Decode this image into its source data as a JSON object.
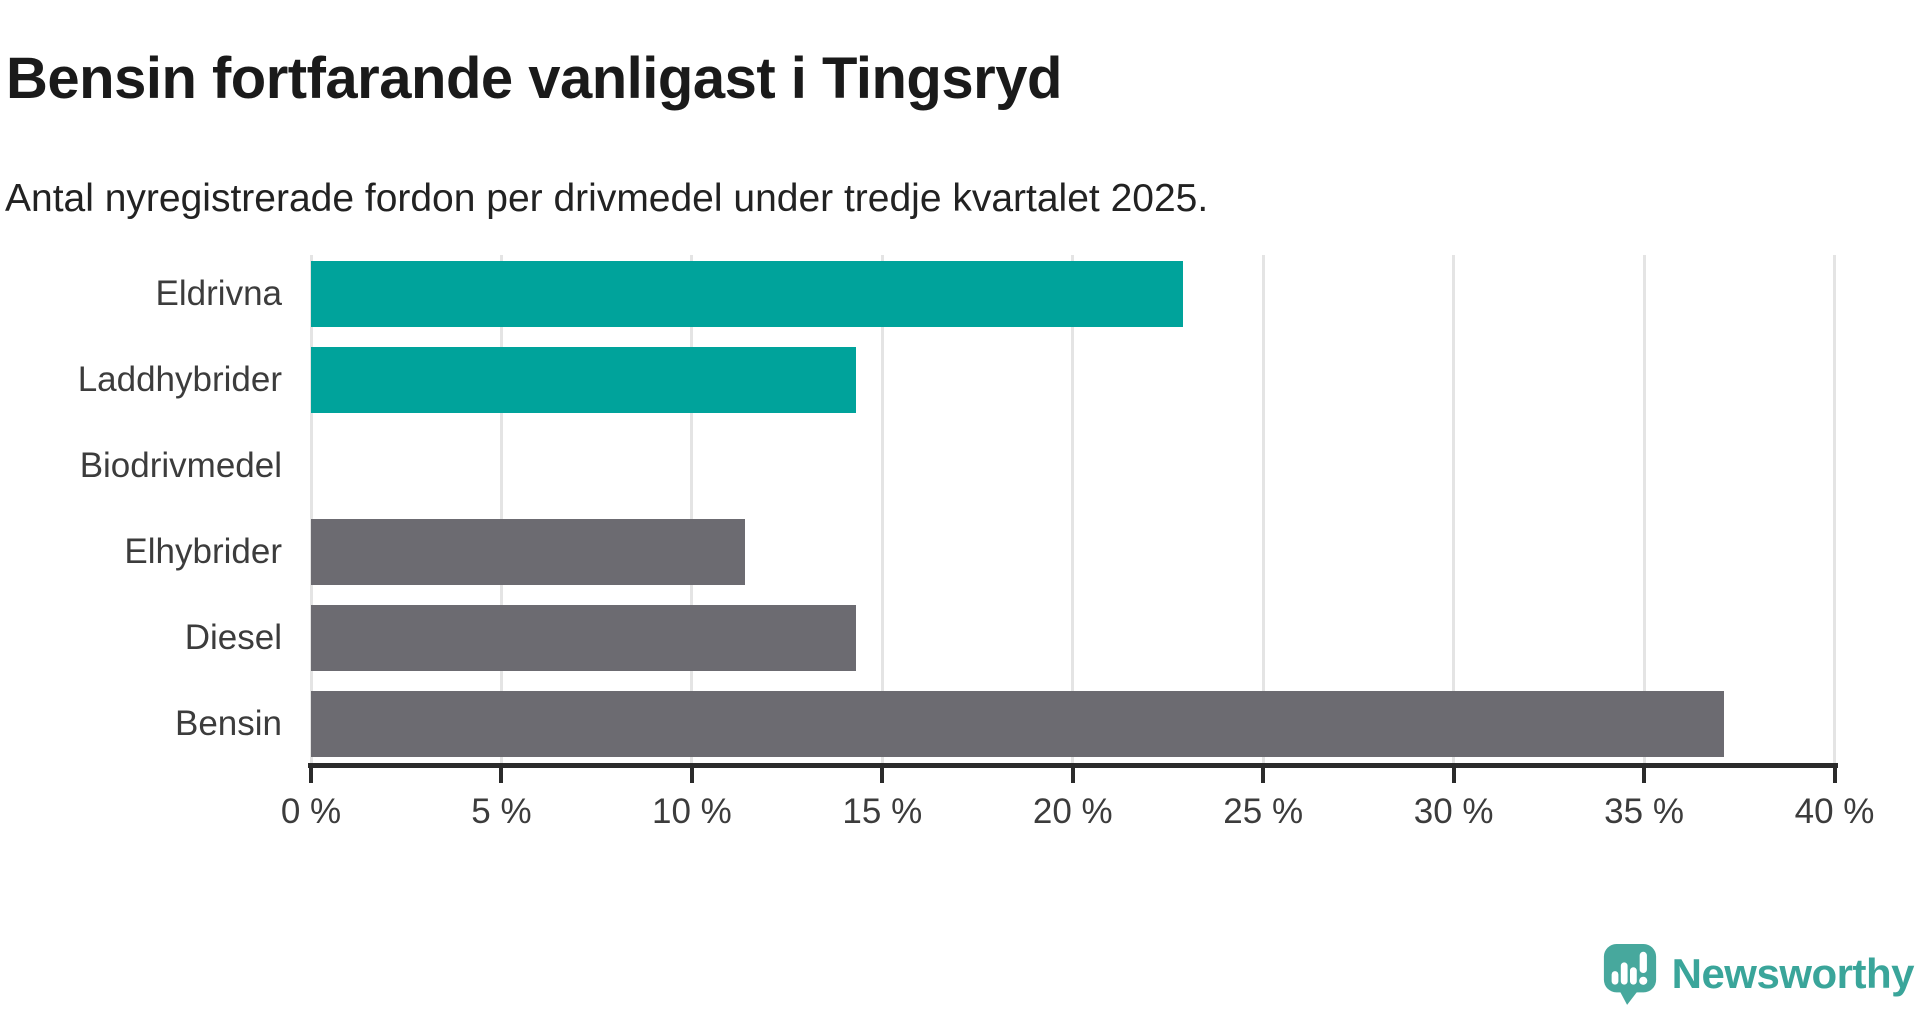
{
  "header": {
    "title": "Bensin fortfarande vanligast i Tingsryd",
    "subtitle": "Antal nyregistrerade fordon per drivmedel under tredje kvartalet 2025."
  },
  "chart_data": {
    "type": "bar",
    "orientation": "horizontal",
    "title": "Bensin fortfarande vanligast i Tingsryd",
    "subtitle": "Antal nyregistrerade fordon per drivmedel under tredje kvartalet 2025.",
    "categories": [
      "Eldrivna",
      "Laddhybrider",
      "Biodrivmedel",
      "Elhybrider",
      "Diesel",
      "Bensin"
    ],
    "values": [
      22.9,
      14.3,
      0,
      11.4,
      14.3,
      37.1
    ],
    "unit": "%",
    "xlim": [
      0,
      40
    ],
    "xtick_values": [
      0,
      5,
      10,
      15,
      20,
      25,
      30,
      35,
      40
    ],
    "xtick_labels": [
      "0 %",
      "5 %",
      "10 %",
      "15 %",
      "20 %",
      "25 %",
      "30 %",
      "35 %",
      "40 %"
    ],
    "bar_colors": [
      "#00a39b",
      "#00a39b",
      "#00a39b",
      "#6c6b71",
      "#6c6b71",
      "#6c6b71"
    ],
    "grid": true,
    "legend": "none",
    "ylabel": "",
    "xlabel": ""
  },
  "colors": {
    "highlight_teal": "#00a39b",
    "neutral_gray": "#6c6b71",
    "axis": "#2b2b2b",
    "gridline": "#e4e4e4",
    "label_text": "#3c3c3c",
    "logo_icon": "#47a89d",
    "logo_text": "#3aa59a"
  },
  "footer": {
    "brand": "Newsworthy"
  }
}
